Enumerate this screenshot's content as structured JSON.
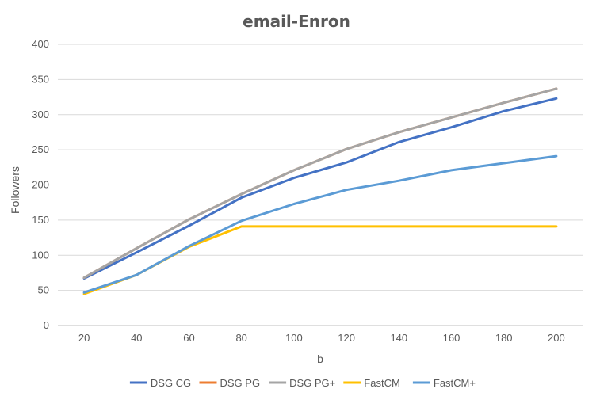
{
  "chart_data": {
    "type": "line",
    "title": "email-Enron",
    "xlabel": "b",
    "ylabel": "Followers",
    "x": [
      20,
      40,
      60,
      80,
      100,
      120,
      140,
      160,
      180,
      200
    ],
    "xlim": [
      10,
      210
    ],
    "ylim": [
      0,
      400
    ],
    "yticks": [
      0,
      50,
      100,
      150,
      200,
      250,
      300,
      350,
      400
    ],
    "grid": true,
    "legend_position": "bottom",
    "series": [
      {
        "name": "DSG CG",
        "color": "#4472C4",
        "values": [
          67,
          104,
          142,
          182,
          210,
          232,
          261,
          282,
          305,
          323
        ]
      },
      {
        "name": "DSG PG",
        "color": "#ED7D31",
        "values": [
          68,
          110,
          151,
          187,
          221,
          251,
          275,
          296,
          317,
          337
        ]
      },
      {
        "name": "DSG PG+",
        "color": "#A5A5A5",
        "values": [
          68,
          110,
          151,
          187,
          221,
          251,
          275,
          296,
          317,
          337
        ]
      },
      {
        "name": "FastCM",
        "color": "#FFC000",
        "values": [
          45,
          72,
          112,
          141,
          141,
          141,
          141,
          141,
          141,
          141
        ]
      },
      {
        "name": "FastCM+",
        "color": "#5B9BD5",
        "values": [
          47,
          72,
          113,
          149,
          173,
          193,
          206,
          221,
          231,
          241
        ]
      }
    ]
  }
}
